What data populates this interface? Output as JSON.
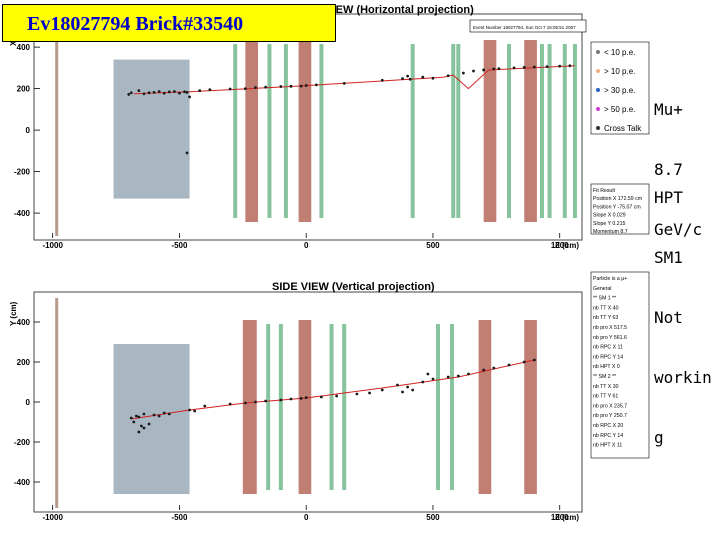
{
  "banner": "Ev18027794 Brick#33540",
  "annotation_mu": [
    "Mu+",
    "8.7",
    "GeV/c"
  ],
  "annotation_hpt": [
    "HPT",
    "SM1",
    "Not",
    "workin",
    "g"
  ],
  "colors": {
    "brick_wall": "#a9b7c2",
    "magnet": "#c17f73",
    "rpc_plane": "#86c49d",
    "track": "#d42020",
    "banner_bg": "#ffff00",
    "banner_text": "#0000cc"
  },
  "top_view": {
    "title": "TOP VIEW (Horizontal projection)",
    "info": "Event Number 18027794, Sun Oct 7 16:05:51 2007",
    "legend": [
      "< 10 p.e.",
      "> 10 p.e.",
      "> 30 p.e.",
      "> 50 p.e.",
      "Cross Talk"
    ],
    "stats": [
      "Fit Result",
      "Position X  172.59 cm",
      "Position Y  -75.07 cm",
      "Slope X  0.029",
      "Slope Y  0.215",
      "Momentum  8.7"
    ]
  },
  "side_view": {
    "title": "SIDE VIEW (Vertical projection)",
    "stats": [
      "Particle is a μ+",
      "General",
      "** SM 1 **",
      "nb TT X 40",
      "nb TT Y 63",
      "nb pro X 517.5",
      "nb pro Y 561.6",
      "nb RPC X 11",
      "nb RPC Y 14",
      "nb HPT X 0",
      "** SM 2 **",
      "nb TT X 30",
      "nb TT Y 61",
      "nb pro X 235.7",
      "nb pro Y 250.7",
      "nb RPC X 20",
      "nb RPC Y 14",
      "nb HPT X 11"
    ]
  },
  "chart_data": [
    {
      "type": "scatter",
      "title": "TOP VIEW (Horizontal projection)",
      "xlabel": "Z (cm)",
      "ylabel": "X (cm)",
      "xlim": [
        -1050,
        1080
      ],
      "ylim": [
        -520,
        550
      ],
      "xticks": [
        -1000,
        -500,
        0,
        500,
        1000
      ],
      "yticks": [
        -400,
        -200,
        0,
        200,
        400
      ],
      "regions": {
        "brick_wall": [
          [
            -760,
            -460,
            -330,
            340
          ]
        ],
        "magnets": [
          [
            -240,
            -190
          ],
          [
            -30,
            20
          ],
          [
            700,
            750
          ],
          [
            860,
            910
          ]
        ],
        "rpc_planes": [
          -280,
          -145,
          -80,
          60,
          420,
          580,
          600,
          800,
          930,
          960,
          1020,
          1060
        ],
        "spectrometer_bar": [
          -990,
          -980
        ]
      },
      "track": {
        "x": [
          -680,
          -460,
          -60,
          540,
          580,
          640,
          720,
          1060
        ],
        "y": [
          175,
          185,
          210,
          255,
          265,
          200,
          290,
          310
        ]
      },
      "hits": {
        "x": [
          -700,
          -690,
          -660,
          -640,
          -620,
          -600,
          -580,
          -560,
          -540,
          -520,
          -500,
          -480,
          -470,
          -420,
          -380,
          -300,
          -240,
          -200,
          -160,
          -100,
          -60,
          -20,
          0,
          40,
          150,
          300,
          380,
          400,
          410,
          460,
          500,
          560,
          620,
          660,
          700,
          740,
          760,
          820,
          860,
          900,
          950,
          1000,
          1040,
          -470,
          -460
        ],
        "y": [
          172,
          180,
          190,
          175,
          180,
          182,
          186,
          178,
          184,
          186,
          178,
          185,
          182,
          190,
          195,
          198,
          200,
          205,
          207,
          210,
          211,
          212,
          215,
          218,
          225,
          240,
          248,
          260,
          245,
          255,
          250,
          262,
          275,
          285,
          290,
          295,
          296,
          300,
          302,
          304,
          306,
          308,
          310,
          -110,
          160
        ]
      }
    },
    {
      "type": "scatter",
      "title": "SIDE VIEW (Vertical projection)",
      "xlabel": "Z (cm)",
      "ylabel": "Y (cm)",
      "xlim": [
        -1050,
        1080
      ],
      "ylim": [
        -540,
        530
      ],
      "xticks": [
        -1000,
        -500,
        0,
        500,
        1000
      ],
      "yticks": [
        -400,
        -200,
        0,
        200,
        400
      ],
      "regions": {
        "brick_wall": [
          [
            -760,
            -460,
            -460,
            290
          ]
        ],
        "magnets": [
          [
            -250,
            -195
          ],
          [
            -30,
            20
          ],
          [
            680,
            730
          ],
          [
            860,
            910
          ]
        ],
        "rpc_planes": [
          -150,
          -100,
          100,
          150,
          520,
          575
        ],
        "spectrometer_bar": [
          -990,
          -980
        ]
      },
      "track": {
        "x": [
          -690,
          -460,
          -240,
          0,
          300,
          600,
          900
        ],
        "y": [
          -85,
          -40,
          -5,
          20,
          70,
          125,
          210
        ]
      },
      "hits": {
        "x": [
          -690,
          -680,
          -670,
          -660,
          -650,
          -640,
          -620,
          -600,
          -580,
          -560,
          -540,
          -460,
          -440,
          -400,
          -300,
          -240,
          -200,
          -160,
          -100,
          -60,
          -20,
          0,
          60,
          120,
          200,
          250,
          300,
          360,
          380,
          400,
          420,
          460,
          480,
          500,
          560,
          600,
          640,
          700,
          740,
          800,
          860,
          900,
          -660,
          -640
        ],
        "y": [
          -80,
          -100,
          -70,
          -75,
          -120,
          -60,
          -110,
          -65,
          -70,
          -55,
          -60,
          -40,
          -45,
          -20,
          -10,
          -5,
          0,
          5,
          10,
          15,
          18,
          22,
          25,
          30,
          40,
          45,
          60,
          85,
          50,
          75,
          60,
          100,
          140,
          115,
          125,
          130,
          140,
          160,
          170,
          185,
          200,
          210,
          -150,
          -130
        ]
      }
    }
  ]
}
